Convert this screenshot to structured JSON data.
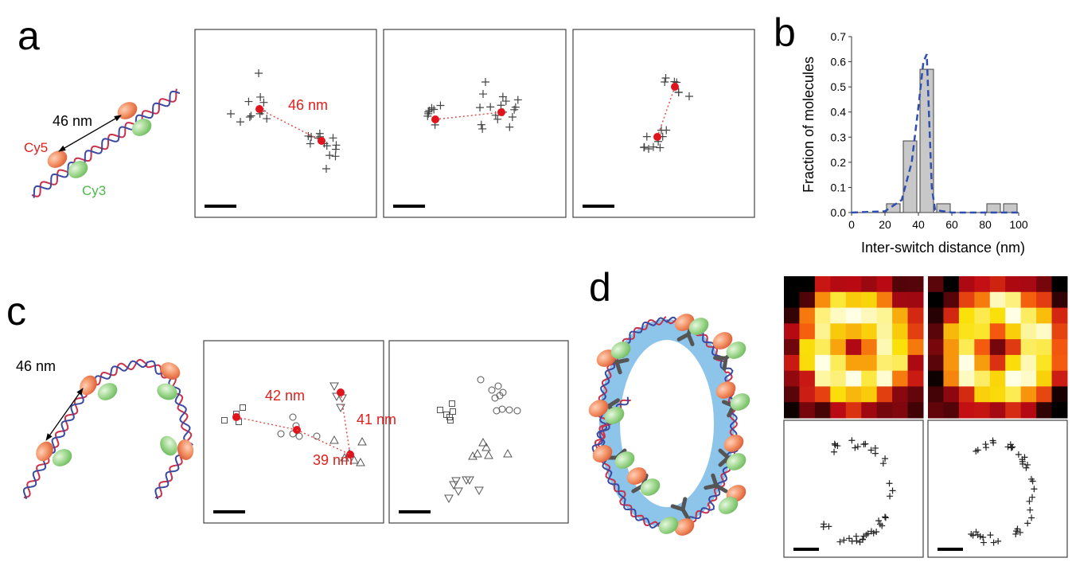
{
  "panels": {
    "a": {
      "label": "a",
      "distance": "46 nm",
      "cy5": "Cy5",
      "cy3": "Cy3",
      "measurement": "46 nm"
    },
    "b": {
      "label": "b"
    },
    "c": {
      "label": "c",
      "distance": "46 nm",
      "measurements": [
        "42 nm",
        "41 nm",
        "39 nm"
      ]
    },
    "d": {
      "label": "d"
    }
  },
  "chart_data": {
    "type": "histogram",
    "bins": [
      20,
      30,
      40,
      50,
      60,
      70,
      80,
      90,
      100
    ],
    "values": [
      0.035,
      0.285,
      0.57,
      0.035,
      0,
      0,
      0.035,
      0.035
    ],
    "color": "#c8c8c8",
    "xlabel": "Inter-switch distance (nm)",
    "ylabel": "Fraction of molecules",
    "xlim": [
      0,
      100
    ],
    "ylim": [
      0,
      0.7
    ],
    "xticks": [
      0,
      20,
      40,
      60,
      80,
      100
    ],
    "yticks": [
      {
        "value": 0,
        "label": "0.0"
      },
      0.1,
      0.2,
      0.3,
      0.4,
      0.5,
      0.6,
      0.7
    ],
    "fit": {
      "color": "#2f4fb0",
      "x": [
        0,
        20,
        30,
        36,
        40,
        43,
        45,
        46,
        48,
        50,
        60,
        100
      ],
      "y": [
        0,
        0.005,
        0.05,
        0.2,
        0.42,
        0.6,
        0.63,
        0.45,
        0.1,
        0.01,
        0,
        0
      ]
    }
  }
}
